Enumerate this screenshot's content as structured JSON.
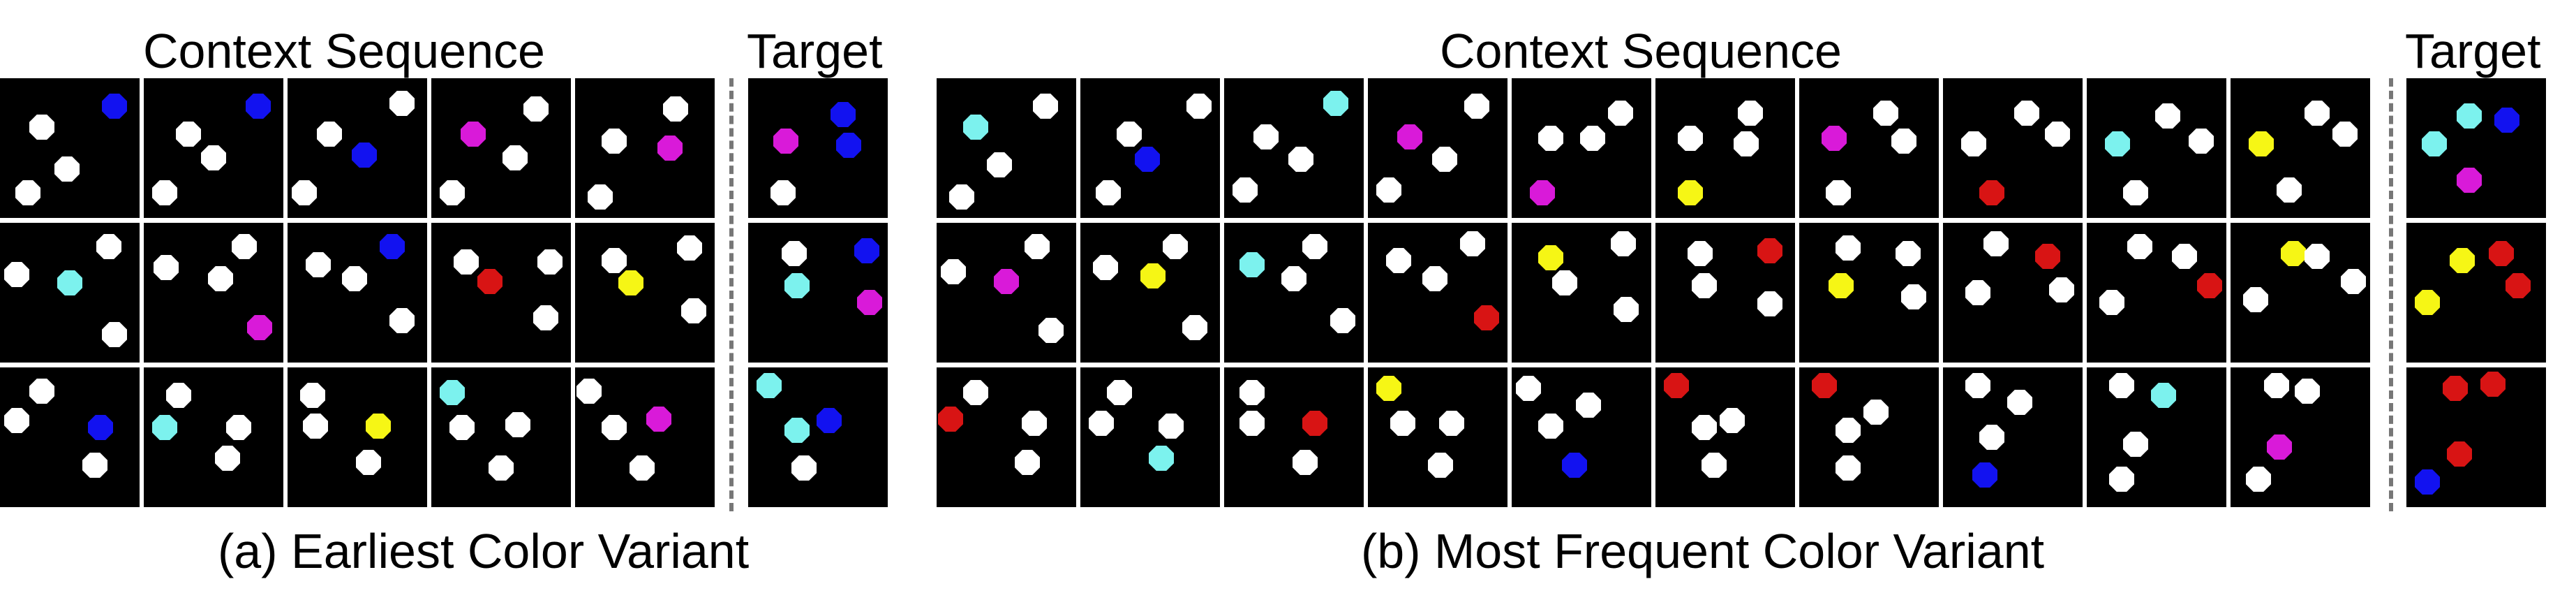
{
  "colors": {
    "white": "#ffffff",
    "blue": "#1212f0",
    "cyan": "#7cf2ee",
    "magenta": "#d91ad9",
    "red": "#d81414",
    "yellow": "#f6f615"
  },
  "panel_a": {
    "context_title": "Context Sequence",
    "target_title": "Target",
    "caption": "(a) Earliest Color Variant",
    "context_rows": [
      [
        [
          [
            "white",
            0.3,
            0.35
          ],
          [
            "blue",
            0.82,
            0.2
          ],
          [
            "white",
            0.48,
            0.65
          ],
          [
            "white",
            0.2,
            0.82
          ]
        ],
        [
          [
            "blue",
            0.82,
            0.2
          ],
          [
            "white",
            0.32,
            0.4
          ],
          [
            "white",
            0.5,
            0.57
          ],
          [
            "white",
            0.15,
            0.82
          ]
        ],
        [
          [
            "white",
            0.82,
            0.18
          ],
          [
            "white",
            0.3,
            0.4
          ],
          [
            "blue",
            0.55,
            0.55
          ],
          [
            "white",
            0.12,
            0.82
          ]
        ],
        [
          [
            "magenta",
            0.3,
            0.4
          ],
          [
            "white",
            0.75,
            0.22
          ],
          [
            "white",
            0.6,
            0.57
          ],
          [
            "white",
            0.15,
            0.82
          ]
        ],
        [
          [
            "white",
            0.72,
            0.22
          ],
          [
            "white",
            0.28,
            0.45
          ],
          [
            "magenta",
            0.68,
            0.5
          ],
          [
            "white",
            0.18,
            0.85
          ]
        ]
      ],
      [
        [
          [
            "white",
            0.78,
            0.17
          ],
          [
            "white",
            0.12,
            0.37
          ],
          [
            "cyan",
            0.5,
            0.43
          ],
          [
            "white",
            0.82,
            0.8
          ]
        ],
        [
          [
            "white",
            0.72,
            0.17
          ],
          [
            "white",
            0.16,
            0.32
          ],
          [
            "white",
            0.55,
            0.4
          ],
          [
            "magenta",
            0.83,
            0.75
          ]
        ],
        [
          [
            "blue",
            0.75,
            0.17
          ],
          [
            "white",
            0.22,
            0.3
          ],
          [
            "white",
            0.48,
            0.4
          ],
          [
            "white",
            0.82,
            0.7
          ]
        ],
        [
          [
            "white",
            0.25,
            0.28
          ],
          [
            "red",
            0.42,
            0.42
          ],
          [
            "white",
            0.82,
            0.68
          ],
          [
            "white",
            0.85,
            0.28
          ]
        ],
        [
          [
            "white",
            0.28,
            0.27
          ],
          [
            "yellow",
            0.4,
            0.43
          ],
          [
            "white",
            0.82,
            0.18
          ],
          [
            "white",
            0.85,
            0.63
          ]
        ]
      ],
      [
        [
          [
            "white",
            0.3,
            0.17
          ],
          [
            "white",
            0.12,
            0.38
          ],
          [
            "blue",
            0.72,
            0.43
          ],
          [
            "white",
            0.68,
            0.7
          ]
        ],
        [
          [
            "white",
            0.25,
            0.2
          ],
          [
            "cyan",
            0.15,
            0.43
          ],
          [
            "white",
            0.68,
            0.43
          ],
          [
            "white",
            0.6,
            0.65
          ]
        ],
        [
          [
            "white",
            0.18,
            0.2
          ],
          [
            "white",
            0.2,
            0.42
          ],
          [
            "yellow",
            0.65,
            0.42
          ],
          [
            "white",
            0.58,
            0.68
          ]
        ],
        [
          [
            "cyan",
            0.15,
            0.18
          ],
          [
            "white",
            0.22,
            0.43
          ],
          [
            "white",
            0.62,
            0.41
          ],
          [
            "white",
            0.5,
            0.72
          ]
        ],
        [
          [
            "white",
            0.1,
            0.17
          ],
          [
            "white",
            0.28,
            0.43
          ],
          [
            "magenta",
            0.6,
            0.37
          ],
          [
            "white",
            0.48,
            0.72
          ]
        ]
      ]
    ],
    "target_rows": [
      [
        [
          "magenta",
          0.27,
          0.45
        ],
        [
          "blue",
          0.68,
          0.26
        ],
        [
          "blue",
          0.72,
          0.48
        ],
        [
          "white",
          0.25,
          0.82
        ]
      ],
      [
        [
          "white",
          0.33,
          0.22
        ],
        [
          "blue",
          0.85,
          0.2
        ],
        [
          "cyan",
          0.35,
          0.45
        ],
        [
          "magenta",
          0.87,
          0.57
        ]
      ],
      [
        [
          "cyan",
          0.15,
          0.13
        ],
        [
          "blue",
          0.58,
          0.38
        ],
        [
          "cyan",
          0.35,
          0.45
        ],
        [
          "white",
          0.4,
          0.72
        ]
      ]
    ]
  },
  "panel_b": {
    "context_title": "Context Sequence",
    "target_title": "Target",
    "caption": "(b) Most Frequent Color Variant",
    "context_rows": [
      [
        [
          [
            "white",
            0.78,
            0.2
          ],
          [
            "cyan",
            0.28,
            0.35
          ],
          [
            "white",
            0.45,
            0.62
          ],
          [
            "white",
            0.18,
            0.85
          ]
        ],
        [
          [
            "white",
            0.85,
            0.2
          ],
          [
            "white",
            0.35,
            0.4
          ],
          [
            "blue",
            0.48,
            0.58
          ],
          [
            "white",
            0.2,
            0.82
          ]
        ],
        [
          [
            "cyan",
            0.8,
            0.18
          ],
          [
            "white",
            0.3,
            0.42
          ],
          [
            "white",
            0.55,
            0.58
          ],
          [
            "white",
            0.15,
            0.8
          ]
        ],
        [
          [
            "white",
            0.78,
            0.2
          ],
          [
            "magenta",
            0.3,
            0.42
          ],
          [
            "white",
            0.55,
            0.58
          ],
          [
            "white",
            0.15,
            0.8
          ]
        ],
        [
          [
            "white",
            0.78,
            0.25
          ],
          [
            "white",
            0.28,
            0.43
          ],
          [
            "white",
            0.58,
            0.43
          ],
          [
            "magenta",
            0.22,
            0.82
          ]
        ],
        [
          [
            "white",
            0.68,
            0.25
          ],
          [
            "white",
            0.25,
            0.43
          ],
          [
            "white",
            0.65,
            0.47
          ],
          [
            "yellow",
            0.25,
            0.82
          ]
        ],
        [
          [
            "white",
            0.62,
            0.25
          ],
          [
            "magenta",
            0.25,
            0.43
          ],
          [
            "white",
            0.75,
            0.45
          ],
          [
            "white",
            0.28,
            0.82
          ]
        ],
        [
          [
            "white",
            0.6,
            0.25
          ],
          [
            "white",
            0.22,
            0.47
          ],
          [
            "white",
            0.82,
            0.4
          ],
          [
            "red",
            0.35,
            0.82
          ]
        ],
        [
          [
            "white",
            0.58,
            0.27
          ],
          [
            "cyan",
            0.22,
            0.47
          ],
          [
            "white",
            0.82,
            0.45
          ],
          [
            "white",
            0.35,
            0.82
          ]
        ],
        [
          [
            "white",
            0.62,
            0.25
          ],
          [
            "yellow",
            0.22,
            0.47
          ],
          [
            "white",
            0.82,
            0.4
          ],
          [
            "white",
            0.42,
            0.8
          ]
        ]
      ],
      [
        [
          [
            "white",
            0.12,
            0.35
          ],
          [
            "white",
            0.72,
            0.17
          ],
          [
            "magenta",
            0.5,
            0.42
          ],
          [
            "white",
            0.82,
            0.77
          ]
        ],
        [
          [
            "white",
            0.68,
            0.17
          ],
          [
            "white",
            0.18,
            0.32
          ],
          [
            "yellow",
            0.52,
            0.38
          ],
          [
            "white",
            0.82,
            0.75
          ]
        ],
        [
          [
            "white",
            0.65,
            0.17
          ],
          [
            "cyan",
            0.2,
            0.3
          ],
          [
            "white",
            0.5,
            0.4
          ],
          [
            "white",
            0.85,
            0.7
          ]
        ],
        [
          [
            "white",
            0.75,
            0.15
          ],
          [
            "white",
            0.22,
            0.27
          ],
          [
            "white",
            0.48,
            0.4
          ],
          [
            "red",
            0.85,
            0.68
          ]
        ],
        [
          [
            "yellow",
            0.28,
            0.25
          ],
          [
            "white",
            0.8,
            0.15
          ],
          [
            "white",
            0.38,
            0.43
          ],
          [
            "white",
            0.82,
            0.62
          ]
        ],
        [
          [
            "white",
            0.32,
            0.22
          ],
          [
            "red",
            0.82,
            0.2
          ],
          [
            "white",
            0.35,
            0.45
          ],
          [
            "white",
            0.82,
            0.58
          ]
        ],
        [
          [
            "white",
            0.35,
            0.18
          ],
          [
            "white",
            0.78,
            0.22
          ],
          [
            "yellow",
            0.3,
            0.45
          ],
          [
            "white",
            0.82,
            0.53
          ]
        ],
        [
          [
            "white",
            0.38,
            0.15
          ],
          [
            "red",
            0.75,
            0.24
          ],
          [
            "white",
            0.25,
            0.5
          ],
          [
            "white",
            0.85,
            0.48
          ]
        ],
        [
          [
            "white",
            0.38,
            0.17
          ],
          [
            "white",
            0.7,
            0.24
          ],
          [
            "white",
            0.18,
            0.57
          ],
          [
            "red",
            0.88,
            0.45
          ]
        ],
        [
          [
            "yellow",
            0.45,
            0.22
          ],
          [
            "white",
            0.62,
            0.24
          ],
          [
            "white",
            0.18,
            0.55
          ],
          [
            "white",
            0.88,
            0.42
          ]
        ]
      ],
      [
        [
          [
            "white",
            0.28,
            0.18
          ],
          [
            "red",
            0.1,
            0.37
          ],
          [
            "white",
            0.7,
            0.4
          ],
          [
            "white",
            0.65,
            0.68
          ]
        ],
        [
          [
            "white",
            0.28,
            0.18
          ],
          [
            "white",
            0.15,
            0.4
          ],
          [
            "white",
            0.65,
            0.42
          ],
          [
            "cyan",
            0.58,
            0.65
          ]
        ],
        [
          [
            "white",
            0.2,
            0.18
          ],
          [
            "white",
            0.2,
            0.4
          ],
          [
            "red",
            0.65,
            0.4
          ],
          [
            "white",
            0.58,
            0.68
          ]
        ],
        [
          [
            "yellow",
            0.15,
            0.15
          ],
          [
            "white",
            0.25,
            0.4
          ],
          [
            "white",
            0.6,
            0.4
          ],
          [
            "white",
            0.52,
            0.7
          ]
        ],
        [
          [
            "white",
            0.12,
            0.15
          ],
          [
            "white",
            0.28,
            0.42
          ],
          [
            "white",
            0.55,
            0.27
          ],
          [
            "blue",
            0.45,
            0.7
          ]
        ],
        [
          [
            "red",
            0.15,
            0.13
          ],
          [
            "white",
            0.35,
            0.43
          ],
          [
            "white",
            0.55,
            0.38
          ],
          [
            "white",
            0.42,
            0.7
          ]
        ],
        [
          [
            "red",
            0.18,
            0.13
          ],
          [
            "white",
            0.35,
            0.45
          ],
          [
            "white",
            0.55,
            0.32
          ],
          [
            "white",
            0.35,
            0.72
          ]
        ],
        [
          [
            "white",
            0.25,
            0.13
          ],
          [
            "white",
            0.55,
            0.25
          ],
          [
            "white",
            0.35,
            0.5
          ],
          [
            "blue",
            0.3,
            0.77
          ]
        ],
        [
          [
            "white",
            0.25,
            0.13
          ],
          [
            "cyan",
            0.55,
            0.2
          ],
          [
            "white",
            0.35,
            0.55
          ],
          [
            "white",
            0.25,
            0.8
          ]
        ],
        [
          [
            "white",
            0.33,
            0.13
          ],
          [
            "white",
            0.55,
            0.17
          ],
          [
            "magenta",
            0.35,
            0.57
          ],
          [
            "white",
            0.2,
            0.8
          ]
        ]
      ]
    ],
    "target_rows": [
      [
        [
          "cyan",
          0.45,
          0.27
        ],
        [
          "blue",
          0.72,
          0.3
        ],
        [
          "cyan",
          0.2,
          0.47
        ],
        [
          "magenta",
          0.45,
          0.73
        ]
      ],
      [
        [
          "yellow",
          0.4,
          0.27
        ],
        [
          "red",
          0.68,
          0.22
        ],
        [
          "red",
          0.8,
          0.45
        ],
        [
          "yellow",
          0.15,
          0.57
        ]
      ],
      [
        [
          "red",
          0.35,
          0.15
        ],
        [
          "red",
          0.62,
          0.12
        ],
        [
          "red",
          0.38,
          0.62
        ],
        [
          "blue",
          0.15,
          0.82
        ]
      ]
    ]
  }
}
